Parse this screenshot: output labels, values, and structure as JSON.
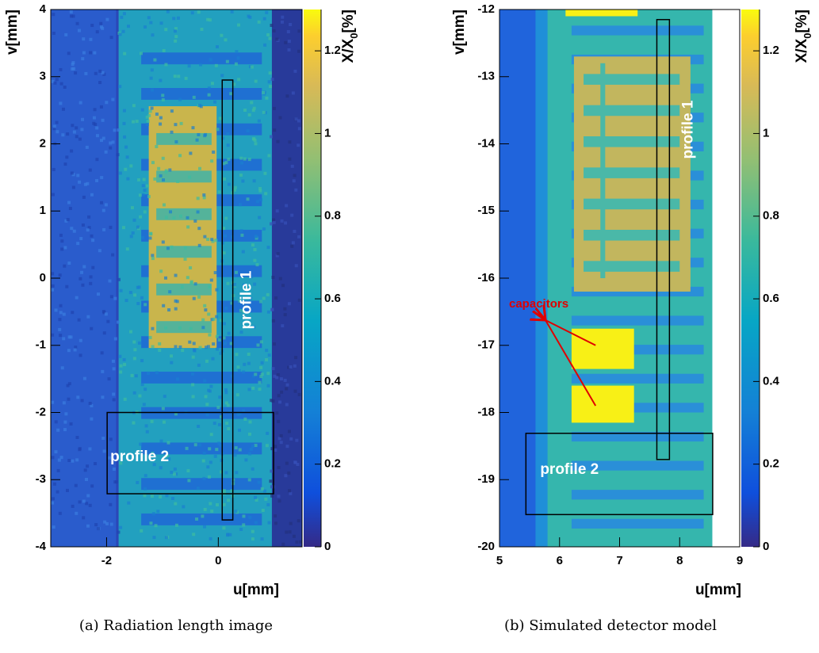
{
  "chart_data": [
    {
      "type": "heatmap",
      "caption": "(a) Radiation length image",
      "xlabel": "u[mm]",
      "ylabel": "v[mm]",
      "colorbar_label": [
        "X/X",
        "0",
        "[%]"
      ],
      "xlim": [
        -3,
        1.5
      ],
      "xticks": [
        -2,
        0
      ],
      "ylim": [
        -4,
        4
      ],
      "yticks": [
        -4,
        -3,
        -2,
        -1,
        0,
        1,
        2,
        3,
        4
      ],
      "zlim": [
        0,
        1.3
      ],
      "zticks": [
        0,
        0.2,
        0.4,
        0.6,
        0.8,
        1,
        1.2
      ],
      "regions": [
        {
          "label": "profile 1",
          "x": [
            0.07,
            0.26
          ],
          "y": [
            -3.6,
            2.95
          ]
        },
        {
          "label": "profile 2",
          "x": [
            -1.99,
            0.99
          ],
          "y": [
            -3.21,
            -2.0
          ]
        }
      ]
    },
    {
      "type": "heatmap",
      "caption": "(b) Simulated detector model",
      "xlabel": "u[mm]",
      "ylabel": "v[mm]",
      "colorbar_label": [
        "X/X",
        "0",
        "[%]"
      ],
      "xlim": [
        5,
        9
      ],
      "xticks": [
        5,
        6,
        7,
        8,
        9
      ],
      "ylim": [
        -20,
        -12
      ],
      "yticks": [
        -20,
        -19,
        -18,
        -17,
        -16,
        -15,
        -14,
        -13,
        -12
      ],
      "zlim": [
        0,
        1.3
      ],
      "zticks": [
        0,
        0.2,
        0.4,
        0.6,
        0.8,
        1,
        1.2
      ],
      "regions": [
        {
          "label": "profile 1",
          "x": [
            7.62,
            7.83
          ],
          "y": [
            -18.7,
            -12.15
          ]
        },
        {
          "label": "profile 2",
          "x": [
            5.44,
            8.55
          ],
          "y": [
            -19.52,
            -18.31
          ]
        }
      ],
      "annotation": {
        "text": "capacitors",
        "arrows": [
          [
            6.6,
            -17.0
          ],
          [
            6.6,
            -17.9
          ]
        ]
      }
    }
  ]
}
